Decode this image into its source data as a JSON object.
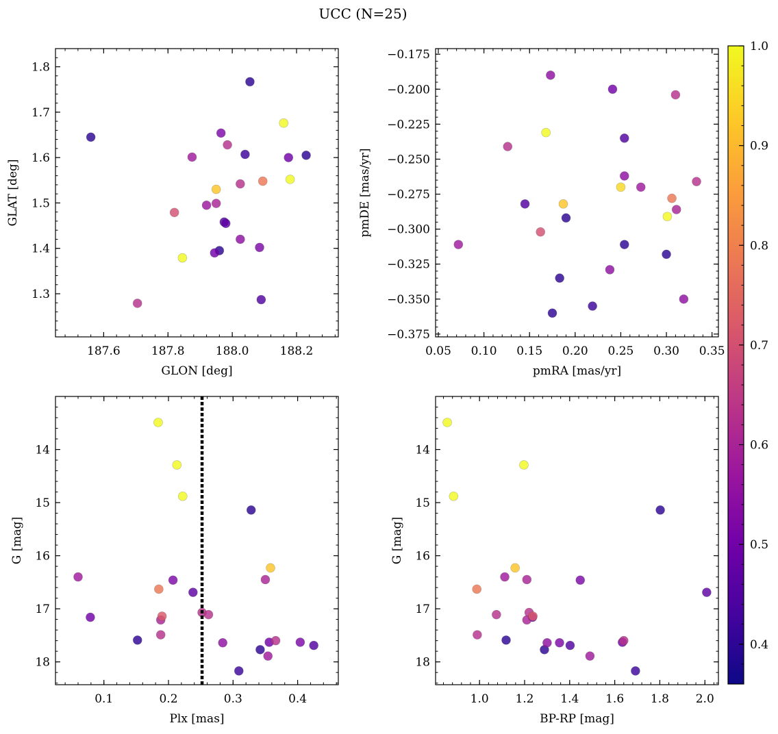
{
  "figure": {
    "title": "UCC (N=25)"
  },
  "colorbar": {
    "range": [
      0.36,
      1.0
    ],
    "ticks": [
      0.4,
      0.5,
      0.6,
      0.7,
      0.8,
      0.9,
      1.0
    ],
    "tick_labels": [
      "0.4",
      "0.5",
      "0.6",
      "0.7",
      "0.8",
      "0.9",
      "1.0"
    ],
    "colormap": [
      "#0d0887",
      "#46039f",
      "#7201a8",
      "#9c179e",
      "#bd3786",
      "#d8576b",
      "#ed7953",
      "#fb9f3a",
      "#fdca26",
      "#f0f921"
    ]
  },
  "chart_data": [
    {
      "type": "scatter",
      "xlabel": "GLON [deg]",
      "ylabel": "GLAT [deg]",
      "xlim": [
        187.45,
        188.33
      ],
      "ylim": [
        1.205,
        1.84
      ],
      "xticks": [
        187.6,
        187.8,
        188.0,
        188.2
      ],
      "xtick_labels": [
        "187.6",
        "187.8",
        "188.0",
        "188.2"
      ],
      "yticks": [
        1.3,
        1.4,
        1.5,
        1.6,
        1.7,
        1.8
      ],
      "ytick_labels": [
        "1.3",
        "1.4",
        "1.5",
        "1.6",
        "1.7",
        "1.8"
      ],
      "points": [
        {
          "x": 187.56,
          "y": 1.645,
          "c": 0.4
        },
        {
          "x": 188.055,
          "y": 1.767,
          "c": 0.4
        },
        {
          "x": 188.16,
          "y": 1.676,
          "c": 1.0
        },
        {
          "x": 187.965,
          "y": 1.654,
          "c": 0.52
        },
        {
          "x": 187.985,
          "y": 1.628,
          "c": 0.63
        },
        {
          "x": 187.875,
          "y": 1.601,
          "c": 0.58
        },
        {
          "x": 188.04,
          "y": 1.607,
          "c": 0.42
        },
        {
          "x": 188.175,
          "y": 1.6,
          "c": 0.5
        },
        {
          "x": 188.23,
          "y": 1.605,
          "c": 0.4
        },
        {
          "x": 188.18,
          "y": 1.552,
          "c": 1.0
        },
        {
          "x": 188.095,
          "y": 1.548,
          "c": 0.78
        },
        {
          "x": 188.025,
          "y": 1.542,
          "c": 0.63
        },
        {
          "x": 187.95,
          "y": 1.53,
          "c": 0.92
        },
        {
          "x": 187.95,
          "y": 1.499,
          "c": 0.6
        },
        {
          "x": 187.92,
          "y": 1.495,
          "c": 0.57
        },
        {
          "x": 187.82,
          "y": 1.479,
          "c": 0.7
        },
        {
          "x": 187.975,
          "y": 1.458,
          "c": 0.45
        },
        {
          "x": 187.98,
          "y": 1.455,
          "c": 0.47
        },
        {
          "x": 188.025,
          "y": 1.42,
          "c": 0.55
        },
        {
          "x": 188.085,
          "y": 1.402,
          "c": 0.52
        },
        {
          "x": 187.96,
          "y": 1.395,
          "c": 0.4
        },
        {
          "x": 187.945,
          "y": 1.39,
          "c": 0.5
        },
        {
          "x": 187.845,
          "y": 1.379,
          "c": 1.0
        },
        {
          "x": 188.09,
          "y": 1.287,
          "c": 0.45
        },
        {
          "x": 187.705,
          "y": 1.279,
          "c": 0.63
        }
      ]
    },
    {
      "type": "scatter",
      "xlabel": "pmRA [mas/yr]",
      "ylabel": "pmDE [mas/yr]",
      "xlim": [
        0.047,
        0.357
      ],
      "ylim": [
        -0.377,
        -0.171
      ],
      "xticks": [
        0.05,
        0.1,
        0.15,
        0.2,
        0.25,
        0.3,
        0.35
      ],
      "xtick_labels": [
        "0.05",
        "0.10",
        "0.15",
        "0.20",
        "0.25",
        "0.30",
        "0.35"
      ],
      "yticks": [
        -0.375,
        -0.35,
        -0.325,
        -0.3,
        -0.275,
        -0.25,
        -0.225,
        -0.2,
        -0.175
      ],
      "ytick_labels": [
        "−0.375",
        "−0.350",
        "−0.325",
        "−0.300",
        "−0.275",
        "−0.250",
        "−0.225",
        "−0.200",
        "−0.175"
      ],
      "points": [
        {
          "x": 0.173,
          "y": -0.19,
          "c": 0.55
        },
        {
          "x": 0.241,
          "y": -0.2,
          "c": 0.5
        },
        {
          "x": 0.31,
          "y": -0.204,
          "c": 0.63
        },
        {
          "x": 0.168,
          "y": -0.231,
          "c": 1.0
        },
        {
          "x": 0.254,
          "y": -0.235,
          "c": 0.45
        },
        {
          "x": 0.126,
          "y": -0.241,
          "c": 0.63
        },
        {
          "x": 0.254,
          "y": -0.262,
          "c": 0.55
        },
        {
          "x": 0.333,
          "y": -0.266,
          "c": 0.63
        },
        {
          "x": 0.25,
          "y": -0.27,
          "c": 0.95
        },
        {
          "x": 0.272,
          "y": -0.27,
          "c": 0.58
        },
        {
          "x": 0.306,
          "y": -0.278,
          "c": 0.78
        },
        {
          "x": 0.145,
          "y": -0.282,
          "c": 0.45
        },
        {
          "x": 0.187,
          "y": -0.282,
          "c": 0.92
        },
        {
          "x": 0.311,
          "y": -0.286,
          "c": 0.6
        },
        {
          "x": 0.301,
          "y": -0.291,
          "c": 1.0
        },
        {
          "x": 0.19,
          "y": -0.292,
          "c": 0.4
        },
        {
          "x": 0.162,
          "y": -0.302,
          "c": 0.7
        },
        {
          "x": 0.072,
          "y": -0.311,
          "c": 0.58
        },
        {
          "x": 0.254,
          "y": -0.311,
          "c": 0.4
        },
        {
          "x": 0.3,
          "y": -0.318,
          "c": 0.4
        },
        {
          "x": 0.238,
          "y": -0.329,
          "c": 0.55
        },
        {
          "x": 0.183,
          "y": -0.335,
          "c": 0.4
        },
        {
          "x": 0.319,
          "y": -0.35,
          "c": 0.55
        },
        {
          "x": 0.219,
          "y": -0.355,
          "c": 0.42
        },
        {
          "x": 0.175,
          "y": -0.36,
          "c": 0.4
        }
      ]
    },
    {
      "type": "scatter",
      "xlabel": "Plx [mas]",
      "ylabel": "G [mag]",
      "xlim": [
        0.025,
        0.463
      ],
      "ylim": [
        18.43,
        13.0
      ],
      "y_inverted": true,
      "xticks": [
        0.1,
        0.2,
        0.3,
        0.4
      ],
      "xtick_labels": [
        "0.1",
        "0.2",
        "0.3",
        "0.4"
      ],
      "yticks": [
        14,
        15,
        16,
        17,
        18
      ],
      "ytick_labels": [
        "14",
        "15",
        "16",
        "17",
        "18"
      ],
      "vline": {
        "x": 0.252,
        "style": "dotted",
        "color": "#000000"
      },
      "points": [
        {
          "x": 0.184,
          "y": 13.49,
          "c": 1.0
        },
        {
          "x": 0.213,
          "y": 14.29,
          "c": 1.0
        },
        {
          "x": 0.222,
          "y": 14.88,
          "c": 1.0
        },
        {
          "x": 0.328,
          "y": 15.14,
          "c": 0.4
        },
        {
          "x": 0.358,
          "y": 16.23,
          "c": 0.92
        },
        {
          "x": 0.06,
          "y": 16.4,
          "c": 0.58
        },
        {
          "x": 0.35,
          "y": 16.45,
          "c": 0.6
        },
        {
          "x": 0.207,
          "y": 16.46,
          "c": 0.52
        },
        {
          "x": 0.185,
          "y": 16.63,
          "c": 0.78
        },
        {
          "x": 0.238,
          "y": 16.69,
          "c": 0.47
        },
        {
          "x": 0.252,
          "y": 17.07,
          "c": 0.63
        },
        {
          "x": 0.262,
          "y": 17.11,
          "c": 0.63
        },
        {
          "x": 0.19,
          "y": 17.14,
          "c": 0.72
        },
        {
          "x": 0.079,
          "y": 17.16,
          "c": 0.5
        },
        {
          "x": 0.188,
          "y": 17.21,
          "c": 0.6
        },
        {
          "x": 0.188,
          "y": 17.49,
          "c": 0.63
        },
        {
          "x": 0.152,
          "y": 17.59,
          "c": 0.4
        },
        {
          "x": 0.366,
          "y": 17.6,
          "c": 0.63
        },
        {
          "x": 0.356,
          "y": 17.63,
          "c": 0.5
        },
        {
          "x": 0.284,
          "y": 17.64,
          "c": 0.55
        },
        {
          "x": 0.404,
          "y": 17.63,
          "c": 0.52
        },
        {
          "x": 0.425,
          "y": 17.69,
          "c": 0.45
        },
        {
          "x": 0.342,
          "y": 17.77,
          "c": 0.4
        },
        {
          "x": 0.354,
          "y": 17.89,
          "c": 0.58
        },
        {
          "x": 0.309,
          "y": 18.17,
          "c": 0.42
        }
      ]
    },
    {
      "type": "scatter",
      "xlabel": "BP-RP [mag]",
      "ylabel": "G [mag]",
      "xlim": [
        0.805,
        2.06
      ],
      "ylim": [
        18.43,
        13.0
      ],
      "y_inverted": true,
      "xticks": [
        1.0,
        1.2,
        1.4,
        1.6,
        1.8,
        2.0
      ],
      "xtick_labels": [
        "1.0",
        "1.2",
        "1.4",
        "1.6",
        "1.8",
        "2.0"
      ],
      "yticks": [
        14,
        15,
        16,
        17,
        18
      ],
      "ytick_labels": [
        "14",
        "15",
        "16",
        "17",
        "18"
      ],
      "points": [
        {
          "x": 0.857,
          "y": 13.49,
          "c": 1.0
        },
        {
          "x": 1.197,
          "y": 14.29,
          "c": 1.0
        },
        {
          "x": 0.885,
          "y": 14.88,
          "c": 1.0
        },
        {
          "x": 1.802,
          "y": 15.14,
          "c": 0.4
        },
        {
          "x": 1.158,
          "y": 16.23,
          "c": 0.92
        },
        {
          "x": 1.112,
          "y": 16.4,
          "c": 0.58
        },
        {
          "x": 1.21,
          "y": 16.45,
          "c": 0.6
        },
        {
          "x": 1.447,
          "y": 16.46,
          "c": 0.52
        },
        {
          "x": 0.988,
          "y": 16.63,
          "c": 0.78
        },
        {
          "x": 2.008,
          "y": 16.69,
          "c": 0.47
        },
        {
          "x": 1.22,
          "y": 17.07,
          "c": 0.63
        },
        {
          "x": 1.075,
          "y": 17.11,
          "c": 0.63
        },
        {
          "x": 1.237,
          "y": 17.14,
          "c": 0.72
        },
        {
          "x": 1.235,
          "y": 17.16,
          "c": 0.5
        },
        {
          "x": 1.21,
          "y": 17.21,
          "c": 0.6
        },
        {
          "x": 0.99,
          "y": 17.49,
          "c": 0.63
        },
        {
          "x": 1.118,
          "y": 17.59,
          "c": 0.4
        },
        {
          "x": 1.64,
          "y": 17.6,
          "c": 0.63
        },
        {
          "x": 1.634,
          "y": 17.63,
          "c": 0.5
        },
        {
          "x": 1.3,
          "y": 17.64,
          "c": 0.55
        },
        {
          "x": 1.355,
          "y": 17.64,
          "c": 0.52
        },
        {
          "x": 1.402,
          "y": 17.69,
          "c": 0.45
        },
        {
          "x": 1.288,
          "y": 17.77,
          "c": 0.4
        },
        {
          "x": 1.49,
          "y": 17.89,
          "c": 0.58
        },
        {
          "x": 1.692,
          "y": 18.17,
          "c": 0.42
        }
      ]
    }
  ]
}
